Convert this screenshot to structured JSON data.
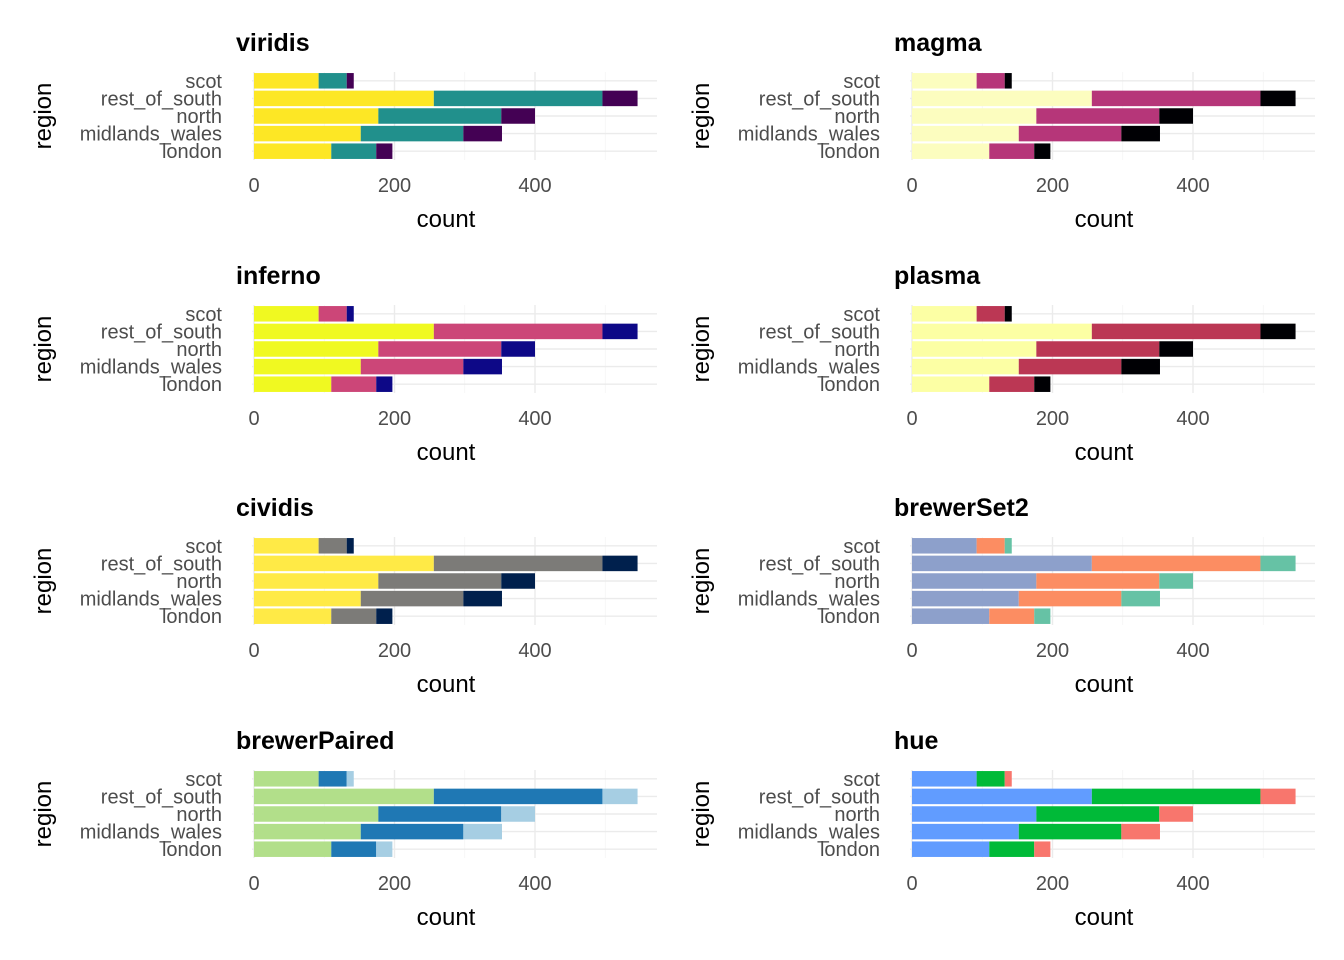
{
  "chart_data": [
    {
      "type": "bar",
      "title": "viridis",
      "orientation": "horizontal",
      "stacked": true,
      "xlabel": "count",
      "ylabel": "region",
      "xlim": [
        0,
        570
      ],
      "xticks": [
        "0",
        "200",
        "400"
      ],
      "categories": [
        "scot",
        "rest_of_south",
        "north",
        "midlands_wales",
        "london"
      ],
      "series": [
        {
          "values": [
            92,
            256,
            177,
            152,
            110
          ],
          "color": "#FDE725"
        },
        {
          "values": [
            40,
            240,
            175,
            146,
            64
          ],
          "color": "#21908C"
        },
        {
          "values": [
            10,
            50,
            48,
            55,
            23
          ],
          "color": "#440154"
        }
      ]
    },
    {
      "type": "bar",
      "title": "magma",
      "orientation": "horizontal",
      "stacked": true,
      "xlabel": "count",
      "ylabel": "region",
      "xlim": [
        0,
        570
      ],
      "xticks": [
        "0",
        "200",
        "400"
      ],
      "categories": [
        "scot",
        "rest_of_south",
        "north",
        "midlands_wales",
        "london"
      ],
      "series": [
        {
          "values": [
            92,
            256,
            177,
            152,
            110
          ],
          "color": "#FCFDBF"
        },
        {
          "values": [
            40,
            240,
            175,
            146,
            64
          ],
          "color": "#B63679"
        },
        {
          "values": [
            10,
            50,
            48,
            55,
            23
          ],
          "color": "#000004"
        }
      ]
    },
    {
      "type": "bar",
      "title": "inferno",
      "orientation": "horizontal",
      "stacked": true,
      "xlabel": "count",
      "ylabel": "region",
      "xlim": [
        0,
        570
      ],
      "xticks": [
        "0",
        "200",
        "400"
      ],
      "categories": [
        "scot",
        "rest_of_south",
        "north",
        "midlands_wales",
        "london"
      ],
      "series": [
        {
          "values": [
            92,
            256,
            177,
            152,
            110
          ],
          "color": "#F0F921"
        },
        {
          "values": [
            40,
            240,
            175,
            146,
            64
          ],
          "color": "#CC4678"
        },
        {
          "values": [
            10,
            50,
            48,
            55,
            23
          ],
          "color": "#0D0887"
        }
      ]
    },
    {
      "type": "bar",
      "title": "plasma",
      "orientation": "horizontal",
      "stacked": true,
      "xlabel": "count",
      "ylabel": "region",
      "xlim": [
        0,
        570
      ],
      "xticks": [
        "0",
        "200",
        "400"
      ],
      "categories": [
        "scot",
        "rest_of_south",
        "north",
        "midlands_wales",
        "london"
      ],
      "series": [
        {
          "values": [
            92,
            256,
            177,
            152,
            110
          ],
          "color": "#FCFFA4"
        },
        {
          "values": [
            40,
            240,
            175,
            146,
            64
          ],
          "color": "#BB3754"
        },
        {
          "values": [
            10,
            50,
            48,
            55,
            23
          ],
          "color": "#000004"
        }
      ]
    },
    {
      "type": "bar",
      "title": "cividis",
      "orientation": "horizontal",
      "stacked": true,
      "xlabel": "count",
      "ylabel": "region",
      "xlim": [
        0,
        570
      ],
      "xticks": [
        "0",
        "200",
        "400"
      ],
      "categories": [
        "scot",
        "rest_of_south",
        "north",
        "midlands_wales",
        "london"
      ],
      "series": [
        {
          "values": [
            92,
            256,
            177,
            152,
            110
          ],
          "color": "#FFEA46"
        },
        {
          "values": [
            40,
            240,
            175,
            146,
            64
          ],
          "color": "#7C7B78"
        },
        {
          "values": [
            10,
            50,
            48,
            55,
            23
          ],
          "color": "#00204D"
        }
      ]
    },
    {
      "type": "bar",
      "title": "brewerSet2",
      "orientation": "horizontal",
      "stacked": true,
      "xlabel": "count",
      "ylabel": "region",
      "xlim": [
        0,
        570
      ],
      "xticks": [
        "0",
        "200",
        "400"
      ],
      "categories": [
        "scot",
        "rest_of_south",
        "north",
        "midlands_wales",
        "london"
      ],
      "series": [
        {
          "values": [
            92,
            256,
            177,
            152,
            110
          ],
          "color": "#8DA0CB"
        },
        {
          "values": [
            40,
            240,
            175,
            146,
            64
          ],
          "color": "#FC8D62"
        },
        {
          "values": [
            10,
            50,
            48,
            55,
            23
          ],
          "color": "#66C2A5"
        }
      ]
    },
    {
      "type": "bar",
      "title": "brewerPaired",
      "orientation": "horizontal",
      "stacked": true,
      "xlabel": "count",
      "ylabel": "region",
      "xlim": [
        0,
        570
      ],
      "xticks": [
        "0",
        "200",
        "400"
      ],
      "categories": [
        "scot",
        "rest_of_south",
        "north",
        "midlands_wales",
        "london"
      ],
      "series": [
        {
          "values": [
            92,
            256,
            177,
            152,
            110
          ],
          "color": "#B2DF8A"
        },
        {
          "values": [
            40,
            240,
            175,
            146,
            64
          ],
          "color": "#1F78B4"
        },
        {
          "values": [
            10,
            50,
            48,
            55,
            23
          ],
          "color": "#A6CEE3"
        }
      ]
    },
    {
      "type": "bar",
      "title": "hue",
      "orientation": "horizontal",
      "stacked": true,
      "xlabel": "count",
      "ylabel": "region",
      "xlim": [
        0,
        570
      ],
      "xticks": [
        "0",
        "200",
        "400"
      ],
      "categories": [
        "scot",
        "rest_of_south",
        "north",
        "midlands_wales",
        "london"
      ],
      "series": [
        {
          "values": [
            92,
            256,
            177,
            152,
            110
          ],
          "color": "#619CFF"
        },
        {
          "values": [
            40,
            240,
            175,
            146,
            64
          ],
          "color": "#00BA38"
        },
        {
          "values": [
            10,
            50,
            48,
            55,
            23
          ],
          "color": "#F8766D"
        }
      ]
    }
  ]
}
